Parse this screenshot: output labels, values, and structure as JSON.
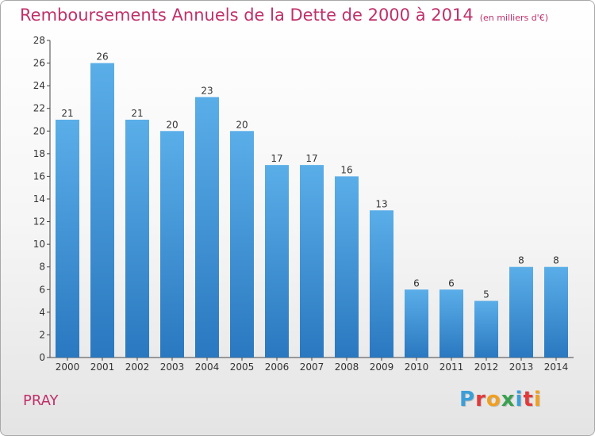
{
  "chart_data": {
    "type": "bar",
    "title": "Remboursements Annuels de la Dette de 2000 à 2014",
    "unit_label": "(en milliers d'€)",
    "categories": [
      "2000",
      "2001",
      "2002",
      "2003",
      "2004",
      "2005",
      "2006",
      "2007",
      "2008",
      "2009",
      "2010",
      "2011",
      "2012",
      "2013",
      "2014"
    ],
    "values": [
      21,
      26,
      21,
      20,
      23,
      20,
      17,
      17,
      16,
      13,
      6,
      6,
      5,
      8,
      8
    ],
    "ylim": [
      0,
      28
    ],
    "yticks": [
      0,
      2,
      4,
      6,
      8,
      10,
      12,
      14,
      16,
      18,
      20,
      22,
      24,
      26,
      28
    ],
    "xlabel": "",
    "ylabel": "",
    "grid": false,
    "legend": "none",
    "bar_color_top": "#5aaee8",
    "bar_color_bottom": "#2a78c0"
  },
  "footer": {
    "city": "PRAY",
    "logo_letters": [
      "P",
      "r",
      "o",
      "x",
      "i",
      "t",
      "i"
    ],
    "logo_colors": [
      "#3a9fd8",
      "#e03a3a",
      "#f0a020",
      "#3aa050",
      "#3a9fd8",
      "#e03a3a",
      "#f0a020"
    ]
  }
}
